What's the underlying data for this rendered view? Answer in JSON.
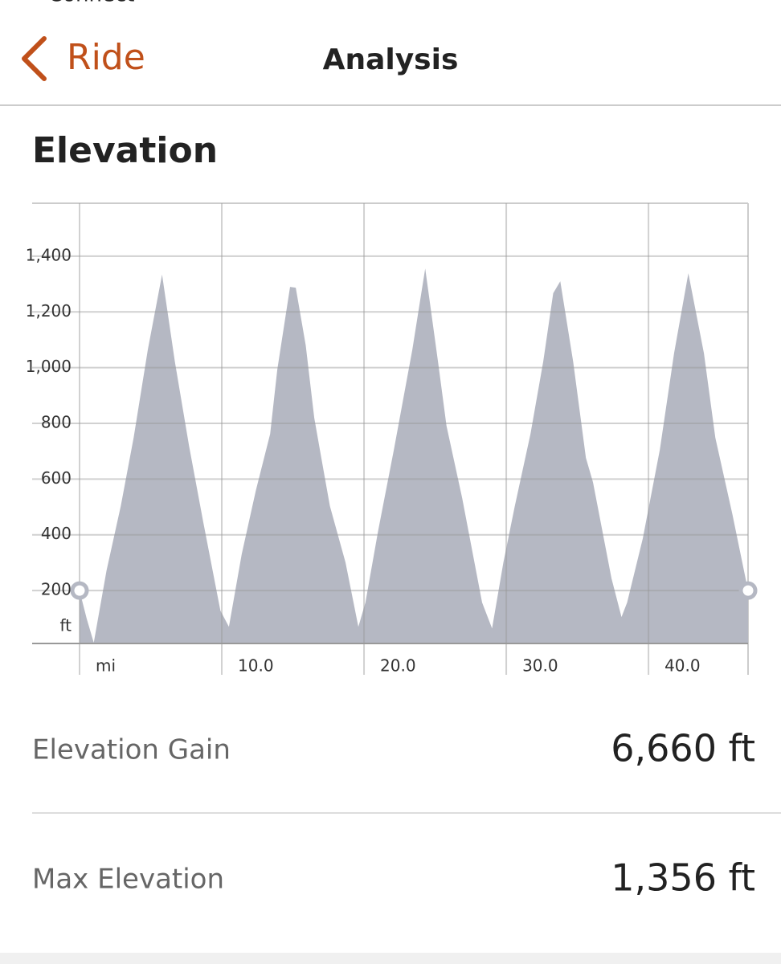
{
  "header": {
    "back_top": "Connect",
    "back": "Ride",
    "title": "Analysis"
  },
  "chart_data": {
    "type": "area",
    "title": "Elevation",
    "x_unit": "mi",
    "y_unit": "ft",
    "color": "#b5b8c3",
    "grid": true,
    "x": [
      0,
      0.5,
      1.0,
      1.9,
      2.9,
      3.8,
      4.8,
      5.8,
      6.7,
      7.7,
      8.7,
      9.9,
      10.5,
      11.4,
      12.4,
      13.4,
      13.9,
      14.8,
      15.2,
      15.9,
      16.5,
      17.0,
      17.6,
      18.7,
      19.6,
      20.1,
      21.0,
      22.1,
      23.4,
      24.3,
      25.2,
      25.8,
      26.9,
      28.3,
      29.0,
      29.8,
      30.6,
      31.7,
      32.6,
      33.3,
      33.8,
      34.7,
      35.6,
      36.1,
      37.4,
      38.1,
      38.5,
      39.6,
      40.8,
      41.8,
      42.8,
      43.9,
      44.7,
      45.9,
      47.0
    ],
    "values": [
      200,
      99,
      13,
      272,
      503,
      748,
      1065,
      1334,
      1022,
      719,
      445,
      128,
      70,
      330,
      560,
      762,
      993,
      1290,
      1287,
      1080,
      820,
      676,
      503,
      301,
      70,
      157,
      416,
      705,
      1065,
      1356,
      1022,
      791,
      532,
      157,
      64,
      301,
      503,
      762,
      1022,
      1267,
      1310,
      1022,
      676,
      589,
      243,
      105,
      157,
      387,
      705,
      1051,
      1339,
      1051,
      748,
      474,
      200
    ],
    "xlim": [
      0,
      47
    ],
    "ylim": [
      10,
      1590
    ],
    "xticks": [
      {
        "value": 0,
        "label": "mi"
      },
      {
        "value": 10,
        "label": "10.0"
      },
      {
        "value": 20,
        "label": "20.0"
      },
      {
        "value": 30,
        "label": "30.0"
      },
      {
        "value": 40,
        "label": "40.0"
      }
    ],
    "yticks": [
      200,
      400,
      600,
      800,
      {
        "value": 1000,
        "label": "1,000"
      },
      {
        "value": 1200,
        "label": "1,200"
      },
      {
        "value": 1400,
        "label": "1,400"
      }
    ]
  },
  "stats": [
    {
      "label": "Elevation Gain",
      "value": "6,660 ft"
    },
    {
      "label": "Max Elevation",
      "value": "1,356 ft"
    }
  ]
}
